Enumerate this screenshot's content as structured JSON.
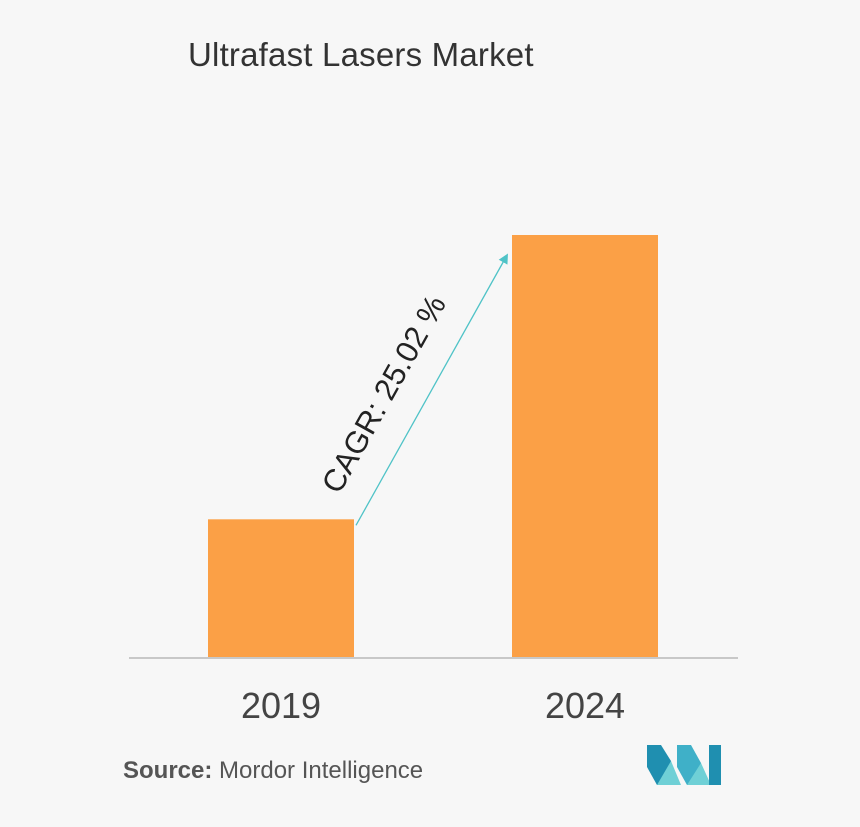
{
  "chart_data": {
    "type": "bar",
    "title": "Ultrafast Lasers Market",
    "categories": [
      "2019",
      "2024"
    ],
    "values": [
      1.0,
      3.05
    ],
    "annotation": "CAGR: 25.02 %",
    "xlabel": "",
    "ylabel": "",
    "grid": false,
    "legend": "none",
    "bar_color": "#fba046",
    "arrow_color": "#4fc3c7"
  },
  "source": {
    "label": "Source:",
    "text": "Mordor Intelligence"
  },
  "colors": {
    "background": "#f7f7f7",
    "title": "#333333",
    "logo": "#4bb6c8"
  }
}
